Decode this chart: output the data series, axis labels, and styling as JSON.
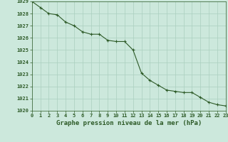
{
  "x": [
    0,
    1,
    2,
    3,
    4,
    5,
    6,
    7,
    8,
    9,
    10,
    11,
    12,
    13,
    14,
    15,
    16,
    17,
    18,
    19,
    20,
    21,
    22,
    23
  ],
  "y": [
    1029.0,
    1028.5,
    1028.0,
    1027.9,
    1027.3,
    1027.0,
    1026.5,
    1026.3,
    1026.3,
    1025.8,
    1025.7,
    1025.7,
    1025.0,
    1023.1,
    1022.5,
    1022.1,
    1021.7,
    1021.6,
    1021.5,
    1021.5,
    1021.1,
    1020.7,
    1020.5,
    1020.4
  ],
  "line_color": "#2d5a27",
  "marker": "+",
  "marker_color": "#2d5a27",
  "bg_color": "#cce8dc",
  "grid_color": "#aacfbf",
  "text_color": "#2d5a27",
  "xlabel": "Graphe pression niveau de la mer (hPa)",
  "ylim_min": 1020,
  "ylim_max": 1029,
  "xlim_min": 0,
  "xlim_max": 23,
  "ytick_step": 1,
  "xtick_labels": [
    "0",
    "1",
    "2",
    "3",
    "4",
    "5",
    "6",
    "7",
    "8",
    "9",
    "10",
    "11",
    "12",
    "13",
    "14",
    "15",
    "16",
    "17",
    "18",
    "19",
    "20",
    "21",
    "22",
    "23"
  ],
  "xlabel_fontsize": 6.5,
  "tick_fontsize": 5.0,
  "line_width": 0.8,
  "marker_size": 3.5
}
